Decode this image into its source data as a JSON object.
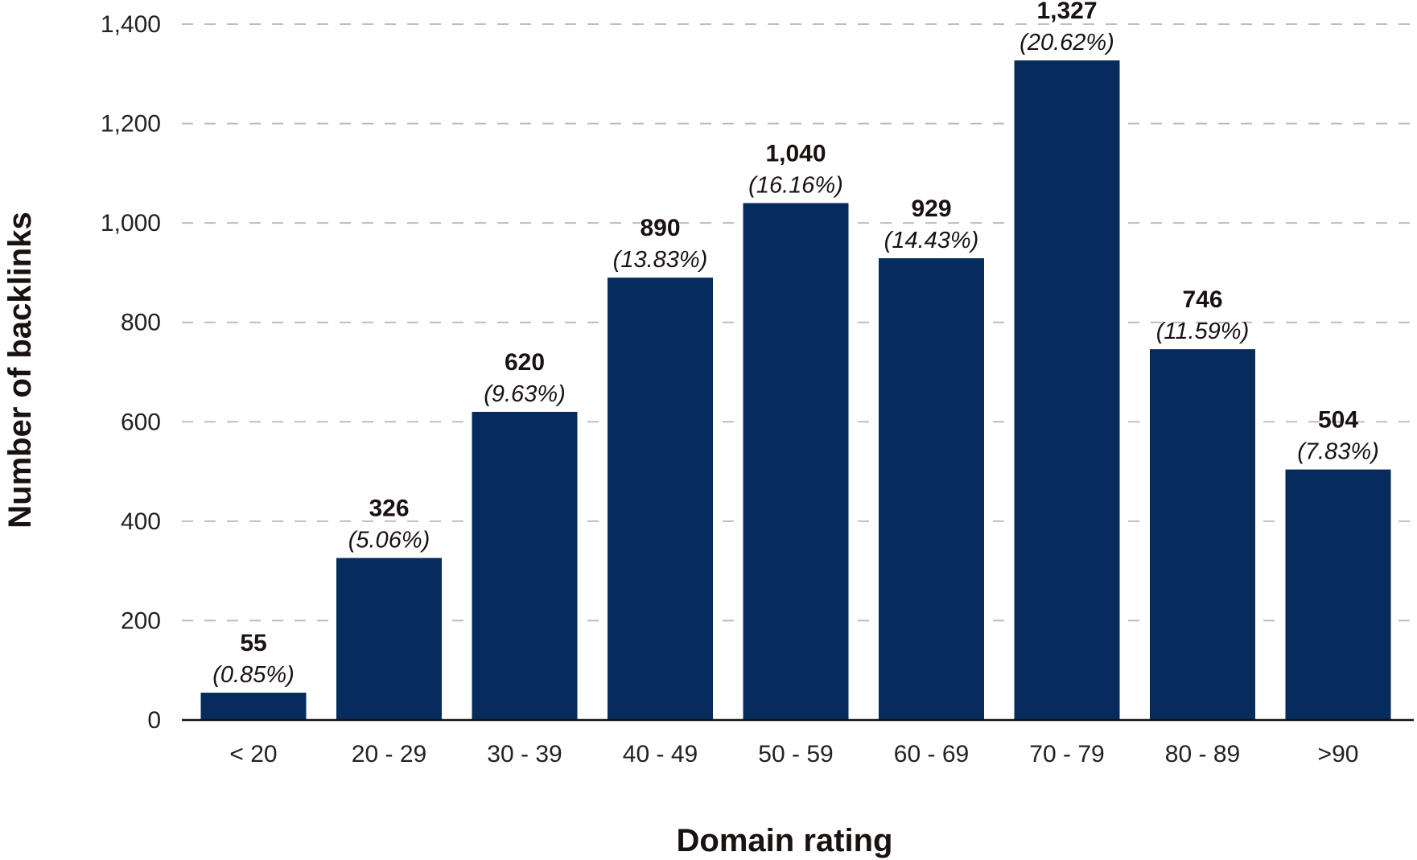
{
  "chart_data": {
    "type": "bar",
    "categories": [
      "< 20",
      "20 - 29",
      "30 - 39",
      "40 - 49",
      "50 - 59",
      "60 - 69",
      "70 - 79",
      "80 - 89",
      ">90"
    ],
    "values": [
      55,
      326,
      620,
      890,
      1040,
      929,
      1327,
      746,
      504
    ],
    "value_labels": [
      "55",
      "326",
      "620",
      "890",
      "1,040",
      "929",
      "1,327",
      "746",
      "504"
    ],
    "percent_labels": [
      "(0.85%)",
      "(5.06%)",
      "(9.63%)",
      "(13.83%)",
      "(16.16%)",
      "(14.43%)",
      "(20.62%)",
      "(11.59%)",
      "(7.83%)"
    ],
    "xlabel": "Domain rating",
    "ylabel": "Number of backlinks",
    "ylim": [
      0,
      1400
    ],
    "yticks": [
      0,
      200,
      400,
      600,
      800,
      1000,
      1200,
      1400
    ],
    "ytick_labels": [
      "0",
      "200",
      "400",
      "600",
      "800",
      "1,000",
      "1,200",
      "1,400"
    ],
    "grid": true,
    "legend": "none",
    "colors": {
      "bar": "#052c5c",
      "grid": "#bdbdbd",
      "axis": "#111111"
    }
  }
}
